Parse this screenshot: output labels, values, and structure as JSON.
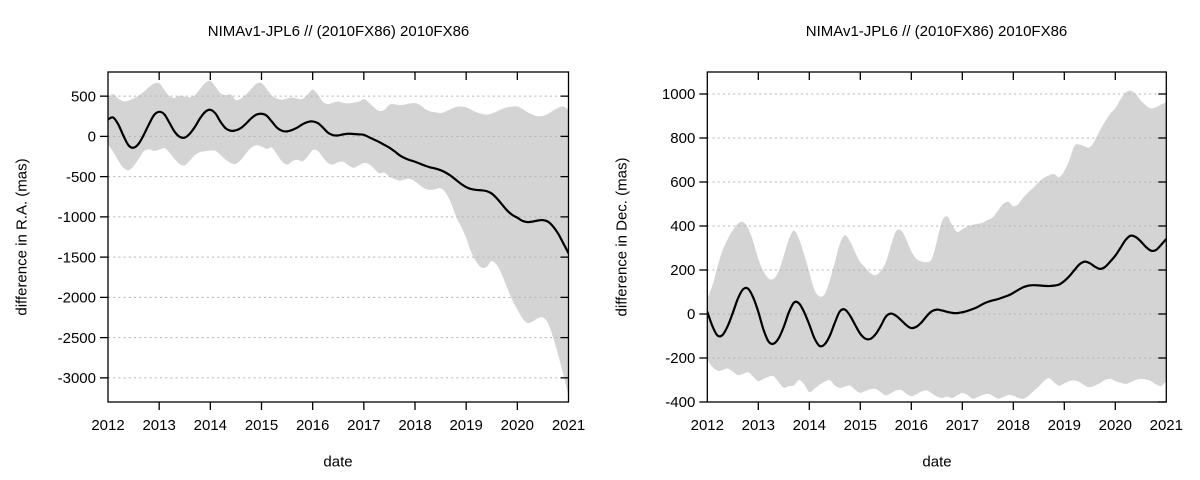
{
  "figure": {
    "background": "#ffffff"
  },
  "chart_data": [
    {
      "id": "ra",
      "type": "line",
      "title": "NIMAv1-JPL6 // (2010FX86) 2010FX86",
      "xlabel": "date",
      "ylabel": "difference in R.A. (mas)",
      "xlim": [
        2012,
        2021
      ],
      "ylim": [
        -3300,
        800
      ],
      "x_ticks": [
        2012,
        2013,
        2014,
        2015,
        2016,
        2017,
        2018,
        2019,
        2020,
        2021
      ],
      "y_ticks": [
        500,
        0,
        -500,
        -1000,
        -1500,
        -2000,
        -2500,
        -3000
      ],
      "grid": "horizontal-dotted",
      "legend": "none",
      "colors": {
        "band": "#d4d4d4",
        "line": "#000000",
        "grid": "#b2b2b2",
        "axis": "#000000"
      },
      "x_start": 2012.0,
      "x_step": 0.1,
      "x": [
        2012.0,
        2012.1,
        2012.2,
        2012.3,
        2012.4,
        2012.5,
        2012.6,
        2012.7,
        2012.8,
        2012.9,
        2013.0,
        2013.1,
        2013.2,
        2013.3,
        2013.4,
        2013.5,
        2013.6,
        2013.7,
        2013.8,
        2013.9,
        2014.0,
        2014.1,
        2014.2,
        2014.3,
        2014.4,
        2014.5,
        2014.6,
        2014.7,
        2014.8,
        2014.9,
        2015.0,
        2015.1,
        2015.2,
        2015.3,
        2015.4,
        2015.5,
        2015.6,
        2015.7,
        2015.8,
        2015.9,
        2016.0,
        2016.1,
        2016.2,
        2016.3,
        2016.4,
        2016.5,
        2016.6,
        2016.7,
        2016.8,
        2016.9,
        2017.0,
        2017.1,
        2017.2,
        2017.3,
        2017.4,
        2017.5,
        2017.6,
        2017.7,
        2017.8,
        2017.9,
        2018.0,
        2018.1,
        2018.2,
        2018.3,
        2018.4,
        2018.5,
        2018.6,
        2018.7,
        2018.8,
        2018.9,
        2019.0,
        2019.1,
        2019.2,
        2019.3,
        2019.4,
        2019.5,
        2019.6,
        2019.7,
        2019.8,
        2019.9,
        2020.0,
        2020.1,
        2020.2,
        2020.3,
        2020.4,
        2020.5,
        2020.6,
        2020.7,
        2020.8,
        2020.9,
        2021.0
      ],
      "series": [
        {
          "name": "nominal difference",
          "values": [
            210,
            235,
            150,
            10,
            -110,
            -140,
            -90,
            20,
            150,
            265,
            305,
            275,
            170,
            60,
            -5,
            -15,
            35,
            120,
            225,
            305,
            330,
            285,
            180,
            100,
            70,
            75,
            105,
            160,
            225,
            270,
            281,
            258,
            185,
            110,
            70,
            62,
            80,
            110,
            150,
            178,
            186,
            165,
            110,
            45,
            15,
            12,
            25,
            33,
            30,
            25,
            20,
            -10,
            -40,
            -70,
            -105,
            -140,
            -185,
            -235,
            -270,
            -295,
            -315,
            -340,
            -365,
            -385,
            -400,
            -420,
            -450,
            -490,
            -540,
            -590,
            -630,
            -655,
            -665,
            -670,
            -680,
            -710,
            -770,
            -845,
            -920,
            -975,
            -1010,
            -1050,
            -1065,
            -1058,
            -1045,
            -1040,
            -1060,
            -1120,
            -1210,
            -1330,
            -1450
          ]
        },
        {
          "name": "uncertainty upper bound",
          "values": [
            490,
            525,
            470,
            435,
            445,
            470,
            510,
            555,
            610,
            655,
            660,
            580,
            500,
            478,
            508,
            495,
            485,
            515,
            590,
            665,
            690,
            620,
            535,
            512,
            520,
            450,
            470,
            520,
            590,
            655,
            662,
            590,
            510,
            470,
            455,
            470,
            484,
            470,
            465,
            520,
            579,
            520,
            430,
            402,
            420,
            434,
            415,
            410,
            420,
            430,
            465,
            420,
            360,
            315,
            330,
            393,
            400,
            390,
            395,
            408,
            414,
            390,
            340,
            310,
            300,
            290,
            310,
            340,
            365,
            372,
            360,
            330,
            300,
            280,
            270,
            285,
            310,
            340,
            360,
            370,
            372,
            340,
            300,
            270,
            250,
            255,
            280,
            320,
            355,
            372,
            330
          ]
        },
        {
          "name": "uncertainty lower bound",
          "values": [
            -100,
            -190,
            -300,
            -390,
            -420,
            -370,
            -280,
            -185,
            -160,
            -180,
            -165,
            -145,
            -200,
            -280,
            -345,
            -360,
            -300,
            -230,
            -195,
            -185,
            -175,
            -180,
            -230,
            -290,
            -330,
            -340,
            -290,
            -210,
            -140,
            -110,
            -125,
            -155,
            -140,
            -220,
            -310,
            -350,
            -310,
            -290,
            -310,
            -250,
            -170,
            -180,
            -260,
            -330,
            -350,
            -320,
            -315,
            -360,
            -390,
            -360,
            -330,
            -345,
            -400,
            -460,
            -450,
            -500,
            -530,
            -550,
            -535,
            -530,
            -560,
            -610,
            -650,
            -665,
            -655,
            -645,
            -700,
            -820,
            -990,
            -1120,
            -1260,
            -1440,
            -1560,
            -1630,
            -1620,
            -1550,
            -1600,
            -1720,
            -1880,
            -2030,
            -2150,
            -2260,
            -2320,
            -2300,
            -2260,
            -2250,
            -2320,
            -2500,
            -2720,
            -2960,
            -3230
          ]
        }
      ]
    },
    {
      "id": "dec",
      "type": "line",
      "title": "NIMAv1-JPL6 // (2010FX86) 2010FX86",
      "xlabel": "date",
      "ylabel": "difference in Dec. (mas)",
      "xlim": [
        2012,
        2021
      ],
      "ylim": [
        -400,
        1100
      ],
      "x_ticks": [
        2012,
        2013,
        2014,
        2015,
        2016,
        2017,
        2018,
        2019,
        2020,
        2021
      ],
      "y_ticks": [
        1000,
        800,
        600,
        400,
        200,
        0,
        -200,
        -400
      ],
      "grid": "horizontal-dotted",
      "legend": "none",
      "colors": {
        "band": "#d4d4d4",
        "line": "#000000",
        "grid": "#b2b2b2",
        "axis": "#000000"
      },
      "x_start": 2012.0,
      "x_step": 0.1,
      "x": [
        2012.0,
        2012.1,
        2012.2,
        2012.3,
        2012.4,
        2012.5,
        2012.6,
        2012.7,
        2012.8,
        2012.9,
        2013.0,
        2013.1,
        2013.2,
        2013.3,
        2013.4,
        2013.5,
        2013.6,
        2013.7,
        2013.8,
        2013.9,
        2014.0,
        2014.1,
        2014.2,
        2014.3,
        2014.4,
        2014.5,
        2014.6,
        2014.7,
        2014.8,
        2014.9,
        2015.0,
        2015.1,
        2015.2,
        2015.3,
        2015.4,
        2015.5,
        2015.6,
        2015.7,
        2015.8,
        2015.9,
        2016.0,
        2016.1,
        2016.2,
        2016.3,
        2016.4,
        2016.5,
        2016.6,
        2016.7,
        2016.8,
        2016.9,
        2017.0,
        2017.1,
        2017.2,
        2017.3,
        2017.4,
        2017.5,
        2017.6,
        2017.7,
        2017.8,
        2017.9,
        2018.0,
        2018.1,
        2018.2,
        2018.3,
        2018.4,
        2018.5,
        2018.6,
        2018.7,
        2018.8,
        2018.9,
        2019.0,
        2019.1,
        2019.2,
        2019.3,
        2019.4,
        2019.5,
        2019.6,
        2019.7,
        2019.8,
        2019.9,
        2020.0,
        2020.1,
        2020.2,
        2020.3,
        2020.4,
        2020.5,
        2020.6,
        2020.7,
        2020.8,
        2020.9,
        2021.0
      ],
      "series": [
        {
          "name": "nominal difference",
          "values": [
            10,
            -55,
            -98,
            -95,
            -55,
            5,
            70,
            112,
            115,
            75,
            10,
            -70,
            -125,
            -135,
            -110,
            -58,
            8,
            52,
            48,
            8,
            -48,
            -110,
            -145,
            -138,
            -100,
            -40,
            12,
            20,
            -8,
            -50,
            -90,
            -112,
            -113,
            -92,
            -55,
            -12,
            2,
            -8,
            -28,
            -50,
            -64,
            -58,
            -38,
            -10,
            12,
            20,
            16,
            10,
            5,
            4,
            8,
            14,
            22,
            32,
            45,
            55,
            62,
            68,
            76,
            84,
            96,
            110,
            122,
            129,
            131,
            130,
            128,
            127,
            129,
            134,
            150,
            172,
            200,
            226,
            238,
            231,
            215,
            205,
            214,
            238,
            265,
            300,
            336,
            356,
            350,
            330,
            305,
            288,
            291,
            315,
            341
          ]
        },
        {
          "name": "uncertainty upper bound",
          "values": [
            70,
            130,
            215,
            290,
            340,
            380,
            410,
            418,
            390,
            330,
            250,
            195,
            162,
            160,
            195,
            265,
            340,
            379,
            340,
            270,
            190,
            110,
            80,
            90,
            150,
            235,
            320,
            358,
            330,
            280,
            235,
            210,
            185,
            176,
            195,
            235,
            310,
            376,
            380,
            340,
            285,
            250,
            239,
            235,
            250,
            330,
            420,
            444,
            405,
            373,
            385,
            398,
            405,
            410,
            415,
            428,
            440,
            470,
            500,
            510,
            490,
            500,
            530,
            555,
            575,
            600,
            618,
            630,
            636,
            622,
            650,
            700,
            765,
            770,
            762,
            758,
            790,
            835,
            875,
            910,
            935,
            975,
            1005,
            1015,
            1000,
            970,
            948,
            935,
            940,
            952,
            962
          ]
        },
        {
          "name": "uncertainty lower bound",
          "values": [
            -208,
            -240,
            -258,
            -255,
            -248,
            -262,
            -278,
            -272,
            -265,
            -285,
            -305,
            -295,
            -285,
            -283,
            -310,
            -335,
            -328,
            -324,
            -300,
            -320,
            -355,
            -340,
            -322,
            -308,
            -300,
            -325,
            -336,
            -330,
            -325,
            -345,
            -358,
            -350,
            -342,
            -341,
            -355,
            -370,
            -360,
            -348,
            -345,
            -362,
            -374,
            -365,
            -352,
            -348,
            -360,
            -375,
            -382,
            -375,
            -382,
            -370,
            -359,
            -368,
            -385,
            -378,
            -368,
            -363,
            -372,
            -385,
            -378,
            -368,
            -372,
            -382,
            -385,
            -372,
            -350,
            -330,
            -305,
            -292,
            -310,
            -326,
            -315,
            -305,
            -302,
            -310,
            -325,
            -333,
            -325,
            -315,
            -300,
            -295,
            -305,
            -312,
            -318,
            -310,
            -300,
            -295,
            -298,
            -305,
            -320,
            -327,
            -305
          ]
        }
      ]
    }
  ]
}
